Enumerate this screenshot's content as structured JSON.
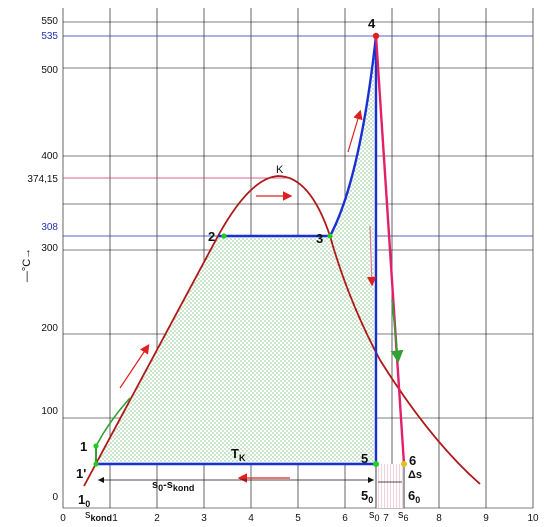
{
  "axes": {
    "x_ticks": [
      "0",
      "1",
      "2",
      "3",
      "4",
      "5",
      "6",
      "7",
      "8",
      "9",
      "10"
    ],
    "y_ticks": [
      "0",
      "100",
      "200",
      "300",
      "400",
      "500",
      "550"
    ],
    "y_special_ticks": [
      {
        "label": "308",
        "color": "#2233aa"
      },
      {
        "label": "374,15",
        "color": "#111111"
      },
      {
        "label": "535",
        "color": "#2233aa"
      }
    ],
    "y_unit": "—°C→"
  },
  "points": {
    "p1": "1",
    "p1prime": "1'",
    "p2": "2",
    "p3": "3",
    "p4": "4",
    "p5": "5",
    "p6": "6",
    "p10": "1",
    "p10_sub": "0",
    "p50": "5",
    "p50_sub": "0",
    "p60": "6",
    "p60_sub": "0",
    "critical": "K"
  },
  "labels": {
    "tk": "T",
    "tk_sub": "K",
    "skond": "s",
    "skond_sub": "kond",
    "s0": "s",
    "s0_sub": "0",
    "s6": "s",
    "s6_sub": "6",
    "range": "s",
    "range_sub1": "0",
    "range_mid": "-s",
    "range_sub2": "kond",
    "delta_s": "Δs"
  },
  "colors": {
    "grid": "#000000",
    "blue_line": "#1a2fd6",
    "saturation_curve": "#b01818",
    "hatch": "#7cc27c",
    "magenta": "#e0206a",
    "arrow_red": "#e02020",
    "arrow_green": "#30a030",
    "point_green": "#22cc22"
  }
}
